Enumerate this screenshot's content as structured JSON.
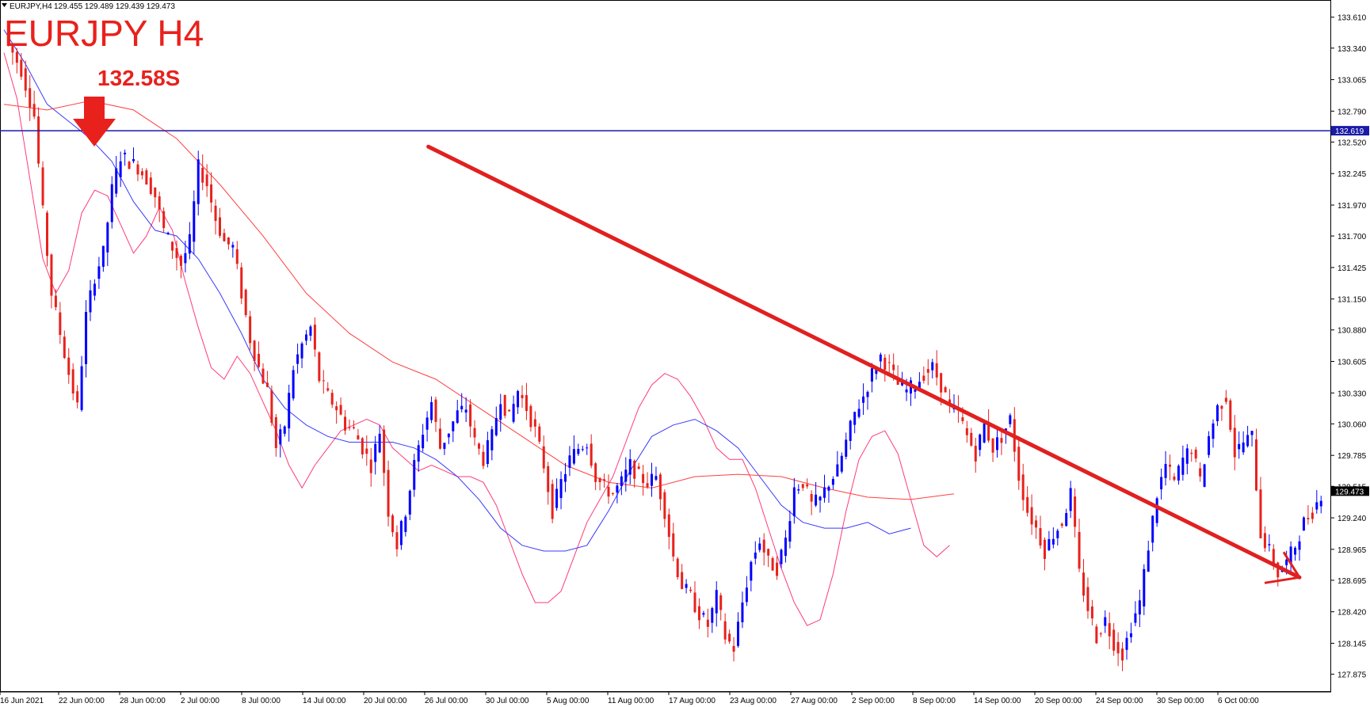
{
  "header": {
    "symbol_info": "EURJPY,H4",
    "ohlc": "129.455 129.489 129.439 129.473"
  },
  "annotations": {
    "title": "EURJPY H4",
    "sell_level": "132.58S"
  },
  "colors": {
    "bull_candle": "#0000ff",
    "bear_candle": "#e8211c",
    "ma_fast": "#ff3a78",
    "ma_mid": "#3a3aff",
    "ma_slow": "#ff4040",
    "hline": "#1a1aa8",
    "trendline": "#e12020"
  },
  "chart_data": {
    "type": "candlestick",
    "price_axis": {
      "range": [
        127.72,
        133.76
      ],
      "ticks": [
        "133.610",
        "133.340",
        "133.065",
        "132.790",
        "132.520",
        "132.245",
        "131.970",
        "131.700",
        "131.425",
        "131.150",
        "130.880",
        "130.605",
        "130.330",
        "130.060",
        "129.785",
        "129.515",
        "129.240",
        "128.965",
        "128.695",
        "128.420",
        "128.145",
        "127.875"
      ]
    },
    "time_axis": {
      "labels": [
        "16 Jun 2021",
        "22 Jun 00:00",
        "28 Jun 00:00",
        "2 Jul 00:00",
        "8 Jul 00:00",
        "14 Jul 00:00",
        "20 Jul 00:00",
        "26 Jul 00:00",
        "30 Jul 00:00",
        "5 Aug 00:00",
        "11 Aug 00:00",
        "17 Aug 00:00",
        "23 Aug 00:00",
        "27 Aug 00:00",
        "2 Sep 00:00",
        "8 Sep 00:00",
        "14 Sep 00:00",
        "20 Sep 00:00",
        "24 Sep 00:00",
        "30 Sep 00:00",
        "6 Oct 00:00"
      ]
    },
    "horizontal_line": {
      "value": 132.619,
      "label": "132.619"
    },
    "current_price": {
      "value": 129.473,
      "label": "129.473"
    },
    "close_path": [
      [
        0,
        133.45
      ],
      [
        4,
        133.15
      ],
      [
        7,
        132.75
      ],
      [
        9,
        131.9
      ],
      [
        11,
        131.2
      ],
      [
        13,
        130.85
      ],
      [
        15,
        130.5
      ],
      [
        17,
        130.2
      ],
      [
        19,
        131.0
      ],
      [
        21,
        131.35
      ],
      [
        23,
        131.55
      ],
      [
        25,
        132.1
      ],
      [
        27,
        132.4
      ],
      [
        29,
        132.35
      ],
      [
        31,
        132.3
      ],
      [
        33,
        132.2
      ],
      [
        35,
        132.05
      ],
      [
        37,
        131.75
      ],
      [
        39,
        131.6
      ],
      [
        41,
        131.45
      ],
      [
        43,
        131.65
      ],
      [
        45,
        132.3
      ],
      [
        47,
        132.15
      ],
      [
        49,
        131.85
      ],
      [
        51,
        131.65
      ],
      [
        53,
        131.6
      ],
      [
        55,
        131.2
      ],
      [
        57,
        130.8
      ],
      [
        59,
        130.55
      ],
      [
        61,
        130.35
      ],
      [
        63,
        129.85
      ],
      [
        65,
        130.05
      ],
      [
        67,
        130.55
      ],
      [
        69,
        130.75
      ],
      [
        71,
        130.9
      ],
      [
        73,
        130.45
      ],
      [
        75,
        130.3
      ],
      [
        77,
        130.2
      ],
      [
        79,
        130.05
      ],
      [
        81,
        130.0
      ],
      [
        83,
        129.85
      ],
      [
        85,
        129.7
      ],
      [
        87,
        130.0
      ],
      [
        89,
        129.3
      ],
      [
        91,
        129.0
      ],
      [
        93,
        129.3
      ],
      [
        95,
        129.7
      ],
      [
        97,
        130.0
      ],
      [
        99,
        130.25
      ],
      [
        101,
        129.85
      ],
      [
        103,
        130.0
      ],
      [
        105,
        130.15
      ],
      [
        107,
        130.2
      ],
      [
        109,
        129.9
      ],
      [
        111,
        129.75
      ],
      [
        113,
        129.95
      ],
      [
        115,
        130.3
      ],
      [
        117,
        130.1
      ],
      [
        119,
        130.35
      ],
      [
        121,
        130.2
      ],
      [
        123,
        130.0
      ],
      [
        125,
        129.7
      ],
      [
        127,
        129.3
      ],
      [
        129,
        129.55
      ],
      [
        131,
        129.75
      ],
      [
        133,
        129.85
      ],
      [
        135,
        129.9
      ],
      [
        137,
        129.6
      ],
      [
        139,
        129.5
      ],
      [
        141,
        129.45
      ],
      [
        143,
        129.55
      ],
      [
        145,
        129.7
      ],
      [
        147,
        129.6
      ],
      [
        149,
        129.55
      ],
      [
        151,
        129.6
      ],
      [
        153,
        129.3
      ],
      [
        155,
        128.9
      ],
      [
        157,
        128.65
      ],
      [
        159,
        128.55
      ],
      [
        161,
        128.4
      ],
      [
        163,
        128.3
      ],
      [
        165,
        128.55
      ],
      [
        167,
        128.2
      ],
      [
        169,
        128.1
      ],
      [
        171,
        128.5
      ],
      [
        173,
        128.85
      ],
      [
        175,
        129.05
      ],
      [
        177,
        128.85
      ],
      [
        179,
        128.8
      ],
      [
        181,
        129.05
      ],
      [
        183,
        129.5
      ],
      [
        185,
        129.55
      ],
      [
        187,
        129.35
      ],
      [
        189,
        129.4
      ],
      [
        191,
        129.55
      ],
      [
        193,
        129.65
      ],
      [
        195,
        129.9
      ],
      [
        197,
        130.15
      ],
      [
        199,
        130.3
      ],
      [
        201,
        130.5
      ],
      [
        203,
        130.65
      ],
      [
        205,
        130.55
      ],
      [
        207,
        130.4
      ],
      [
        209,
        130.35
      ],
      [
        211,
        130.4
      ],
      [
        213,
        130.5
      ],
      [
        215,
        130.55
      ],
      [
        217,
        130.4
      ],
      [
        219,
        130.2
      ],
      [
        221,
        130.15
      ],
      [
        223,
        129.95
      ],
      [
        225,
        129.8
      ],
      [
        227,
        130.05
      ],
      [
        229,
        129.85
      ],
      [
        231,
        129.95
      ],
      [
        233,
        130.1
      ],
      [
        235,
        129.6
      ],
      [
        237,
        129.3
      ],
      [
        239,
        129.15
      ],
      [
        241,
        128.95
      ],
      [
        243,
        129.1
      ],
      [
        245,
        129.2
      ],
      [
        247,
        129.45
      ],
      [
        249,
        128.75
      ],
      [
        251,
        128.45
      ],
      [
        253,
        128.2
      ],
      [
        255,
        128.35
      ],
      [
        257,
        128.15
      ],
      [
        259,
        128.05
      ],
      [
        261,
        128.3
      ],
      [
        263,
        128.5
      ],
      [
        265,
        129.0
      ],
      [
        267,
        129.45
      ],
      [
        269,
        129.7
      ],
      [
        271,
        129.55
      ],
      [
        273,
        129.75
      ],
      [
        275,
        129.85
      ],
      [
        277,
        129.55
      ],
      [
        279,
        129.95
      ],
      [
        281,
        130.2
      ],
      [
        283,
        130.3
      ],
      [
        285,
        129.8
      ],
      [
        287,
        129.9
      ],
      [
        289,
        129.95
      ],
      [
        291,
        129.1
      ],
      [
        293,
        128.95
      ],
      [
        295,
        128.75
      ],
      [
        297,
        128.85
      ],
      [
        299,
        129.0
      ],
      [
        301,
        129.2
      ],
      [
        303,
        129.3
      ],
      [
        305,
        129.45
      ]
    ],
    "moving_averages": [
      {
        "color": "ma_fast",
        "points": [
          [
            0,
            133.3
          ],
          [
            3,
            132.9
          ],
          [
            6,
            132.2
          ],
          [
            9,
            131.5
          ],
          [
            12,
            131.2
          ],
          [
            15,
            131.4
          ],
          [
            18,
            131.9
          ],
          [
            21,
            132.1
          ],
          [
            24,
            132.05
          ],
          [
            27,
            131.8
          ],
          [
            30,
            131.55
          ],
          [
            33,
            131.7
          ],
          [
            36,
            131.95
          ],
          [
            39,
            131.75
          ],
          [
            42,
            131.3
          ],
          [
            45,
            130.9
          ],
          [
            48,
            130.55
          ],
          [
            51,
            130.45
          ],
          [
            54,
            130.65
          ],
          [
            57,
            130.5
          ],
          [
            60,
            130.25
          ],
          [
            63,
            130.0
          ],
          [
            66,
            129.7
          ],
          [
            69,
            129.5
          ],
          [
            72,
            129.7
          ],
          [
            75,
            129.85
          ],
          [
            78,
            130.0
          ],
          [
            81,
            130.05
          ],
          [
            84,
            130.1
          ],
          [
            87,
            130.05
          ],
          [
            90,
            129.85
          ],
          [
            93,
            129.75
          ],
          [
            96,
            129.65
          ],
          [
            99,
            129.7
          ],
          [
            102,
            129.65
          ],
          [
            105,
            129.6
          ],
          [
            108,
            129.6
          ],
          [
            111,
            129.55
          ],
          [
            114,
            129.35
          ],
          [
            117,
            129.05
          ],
          [
            120,
            128.75
          ],
          [
            123,
            128.5
          ],
          [
            126,
            128.5
          ],
          [
            129,
            128.6
          ],
          [
            132,
            128.9
          ],
          [
            135,
            129.2
          ],
          [
            138,
            129.4
          ],
          [
            141,
            129.6
          ],
          [
            144,
            129.9
          ],
          [
            147,
            130.2
          ],
          [
            150,
            130.4
          ],
          [
            153,
            130.5
          ],
          [
            156,
            130.45
          ],
          [
            159,
            130.3
          ],
          [
            162,
            130.1
          ],
          [
            165,
            129.85
          ],
          [
            168,
            129.75
          ],
          [
            171,
            129.75
          ],
          [
            174,
            129.5
          ],
          [
            177,
            129.15
          ],
          [
            180,
            128.8
          ],
          [
            183,
            128.5
          ],
          [
            186,
            128.3
          ],
          [
            189,
            128.35
          ],
          [
            192,
            128.75
          ],
          [
            195,
            129.3
          ],
          [
            198,
            129.75
          ],
          [
            201,
            129.95
          ],
          [
            204,
            130.0
          ],
          [
            207,
            129.8
          ],
          [
            210,
            129.4
          ],
          [
            213,
            129.0
          ],
          [
            216,
            128.9
          ],
          [
            219,
            129.0
          ]
        ]
      },
      {
        "color": "ma_mid",
        "points": [
          [
            0,
            133.5
          ],
          [
            5,
            133.2
          ],
          [
            10,
            132.85
          ],
          [
            15,
            132.7
          ],
          [
            20,
            132.55
          ],
          [
            25,
            132.35
          ],
          [
            30,
            132.0
          ],
          [
            35,
            131.75
          ],
          [
            40,
            131.7
          ],
          [
            45,
            131.5
          ],
          [
            50,
            131.2
          ],
          [
            55,
            130.85
          ],
          [
            60,
            130.45
          ],
          [
            65,
            130.2
          ],
          [
            70,
            130.05
          ],
          [
            75,
            129.95
          ],
          [
            80,
            129.9
          ],
          [
            85,
            129.9
          ],
          [
            90,
            129.9
          ],
          [
            95,
            129.85
          ],
          [
            100,
            129.75
          ],
          [
            105,
            129.6
          ],
          [
            110,
            129.4
          ],
          [
            115,
            129.15
          ],
          [
            120,
            129.0
          ],
          [
            125,
            128.95
          ],
          [
            130,
            128.95
          ],
          [
            135,
            129.0
          ],
          [
            140,
            129.3
          ],
          [
            145,
            129.65
          ],
          [
            150,
            129.95
          ],
          [
            155,
            130.05
          ],
          [
            160,
            130.1
          ],
          [
            165,
            130.0
          ],
          [
            170,
            129.85
          ],
          [
            175,
            129.6
          ],
          [
            180,
            129.35
          ],
          [
            185,
            129.2
          ],
          [
            190,
            129.15
          ],
          [
            195,
            129.15
          ],
          [
            200,
            129.2
          ],
          [
            205,
            129.1
          ],
          [
            210,
            129.15
          ]
        ]
      },
      {
        "color": "ma_slow",
        "points": [
          [
            0,
            132.85
          ],
          [
            10,
            132.8
          ],
          [
            20,
            132.88
          ],
          [
            30,
            132.8
          ],
          [
            40,
            132.55
          ],
          [
            50,
            132.15
          ],
          [
            60,
            131.7
          ],
          [
            70,
            131.2
          ],
          [
            80,
            130.85
          ],
          [
            90,
            130.6
          ],
          [
            100,
            130.45
          ],
          [
            110,
            130.2
          ],
          [
            120,
            129.95
          ],
          [
            130,
            129.7
          ],
          [
            140,
            129.55
          ],
          [
            150,
            129.5
          ],
          [
            160,
            129.6
          ],
          [
            170,
            129.62
          ],
          [
            180,
            129.6
          ],
          [
            190,
            129.5
          ],
          [
            200,
            129.42
          ],
          [
            210,
            129.4
          ],
          [
            220,
            129.45
          ]
        ]
      }
    ],
    "trendline": {
      "from": [
        68,
        132.48
      ],
      "to": [
        300,
        128.72
      ]
    }
  }
}
